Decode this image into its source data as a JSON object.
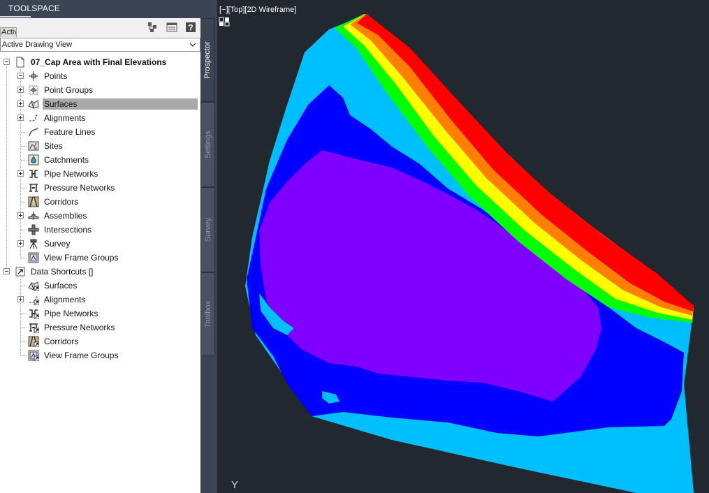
{
  "toolspace": {
    "title": "TOOLSPACE",
    "active_tab_label": "Activ",
    "view_selector": {
      "selected": "Active Drawing View"
    },
    "tree": {
      "drawing_label": "07_Cap Area with Final Elevations",
      "drawing_items": [
        {
          "label": "Points",
          "icon": "points-icon",
          "expander": "bullet"
        },
        {
          "label": "Point Groups",
          "icon": "point-groups-icon",
          "expander": "plus"
        },
        {
          "label": "Surfaces",
          "icon": "surfaces-icon",
          "expander": "plus",
          "selected": true
        },
        {
          "label": "Alignments",
          "icon": "alignments-icon",
          "expander": "plus"
        },
        {
          "label": "Feature Lines",
          "icon": "feature-lines-icon",
          "expander": "none"
        },
        {
          "label": "Sites",
          "icon": "sites-icon",
          "expander": "none"
        },
        {
          "label": "Catchments",
          "icon": "catchments-icon",
          "expander": "none"
        },
        {
          "label": "Pipe Networks",
          "icon": "pipe-networks-icon",
          "expander": "plus"
        },
        {
          "label": "Pressure Networks",
          "icon": "pressure-networks-icon",
          "expander": "none"
        },
        {
          "label": "Corridors",
          "icon": "corridors-icon",
          "expander": "none"
        },
        {
          "label": "Assemblies",
          "icon": "assemblies-icon",
          "expander": "plus"
        },
        {
          "label": "Intersections",
          "icon": "intersections-icon",
          "expander": "none"
        },
        {
          "label": "Survey",
          "icon": "survey-icon",
          "expander": "plus"
        },
        {
          "label": "View Frame Groups",
          "icon": "view-frame-groups-icon",
          "expander": "none"
        }
      ],
      "shortcuts_label": "Data Shortcuts []",
      "shortcut_items": [
        {
          "label": "Surfaces",
          "icon": "surfaces-shortcut-icon",
          "expander": "none"
        },
        {
          "label": "Alignments",
          "icon": "alignments-shortcut-icon",
          "expander": "plus"
        },
        {
          "label": "Pipe Networks",
          "icon": "pipe-networks-shortcut-icon",
          "expander": "none"
        },
        {
          "label": "Pressure Networks",
          "icon": "pressure-networks-shortcut-icon",
          "expander": "none"
        },
        {
          "label": "Corridors",
          "icon": "corridors-shortcut-icon",
          "expander": "none"
        },
        {
          "label": "View Frame Groups",
          "icon": "view-frame-groups-shortcut-icon",
          "expander": "none"
        }
      ]
    },
    "side_tabs": [
      {
        "label": "Prospector",
        "active": true
      },
      {
        "label": "Settings",
        "active": false
      },
      {
        "label": "Survey",
        "active": false
      },
      {
        "label": "Toolbox",
        "active": false
      }
    ]
  },
  "viewport": {
    "label": "[−][Top][2D Wireframe]",
    "ucs_axis": "Y",
    "colors": {
      "background": "#212830",
      "band_1": "#00bfff",
      "band_2": "#0000ff",
      "band_3": "#8000ff",
      "band_4": "#00ff00",
      "band_5": "#ffff00",
      "band_6": "#ff8000",
      "band_7": "#ff0000"
    }
  }
}
